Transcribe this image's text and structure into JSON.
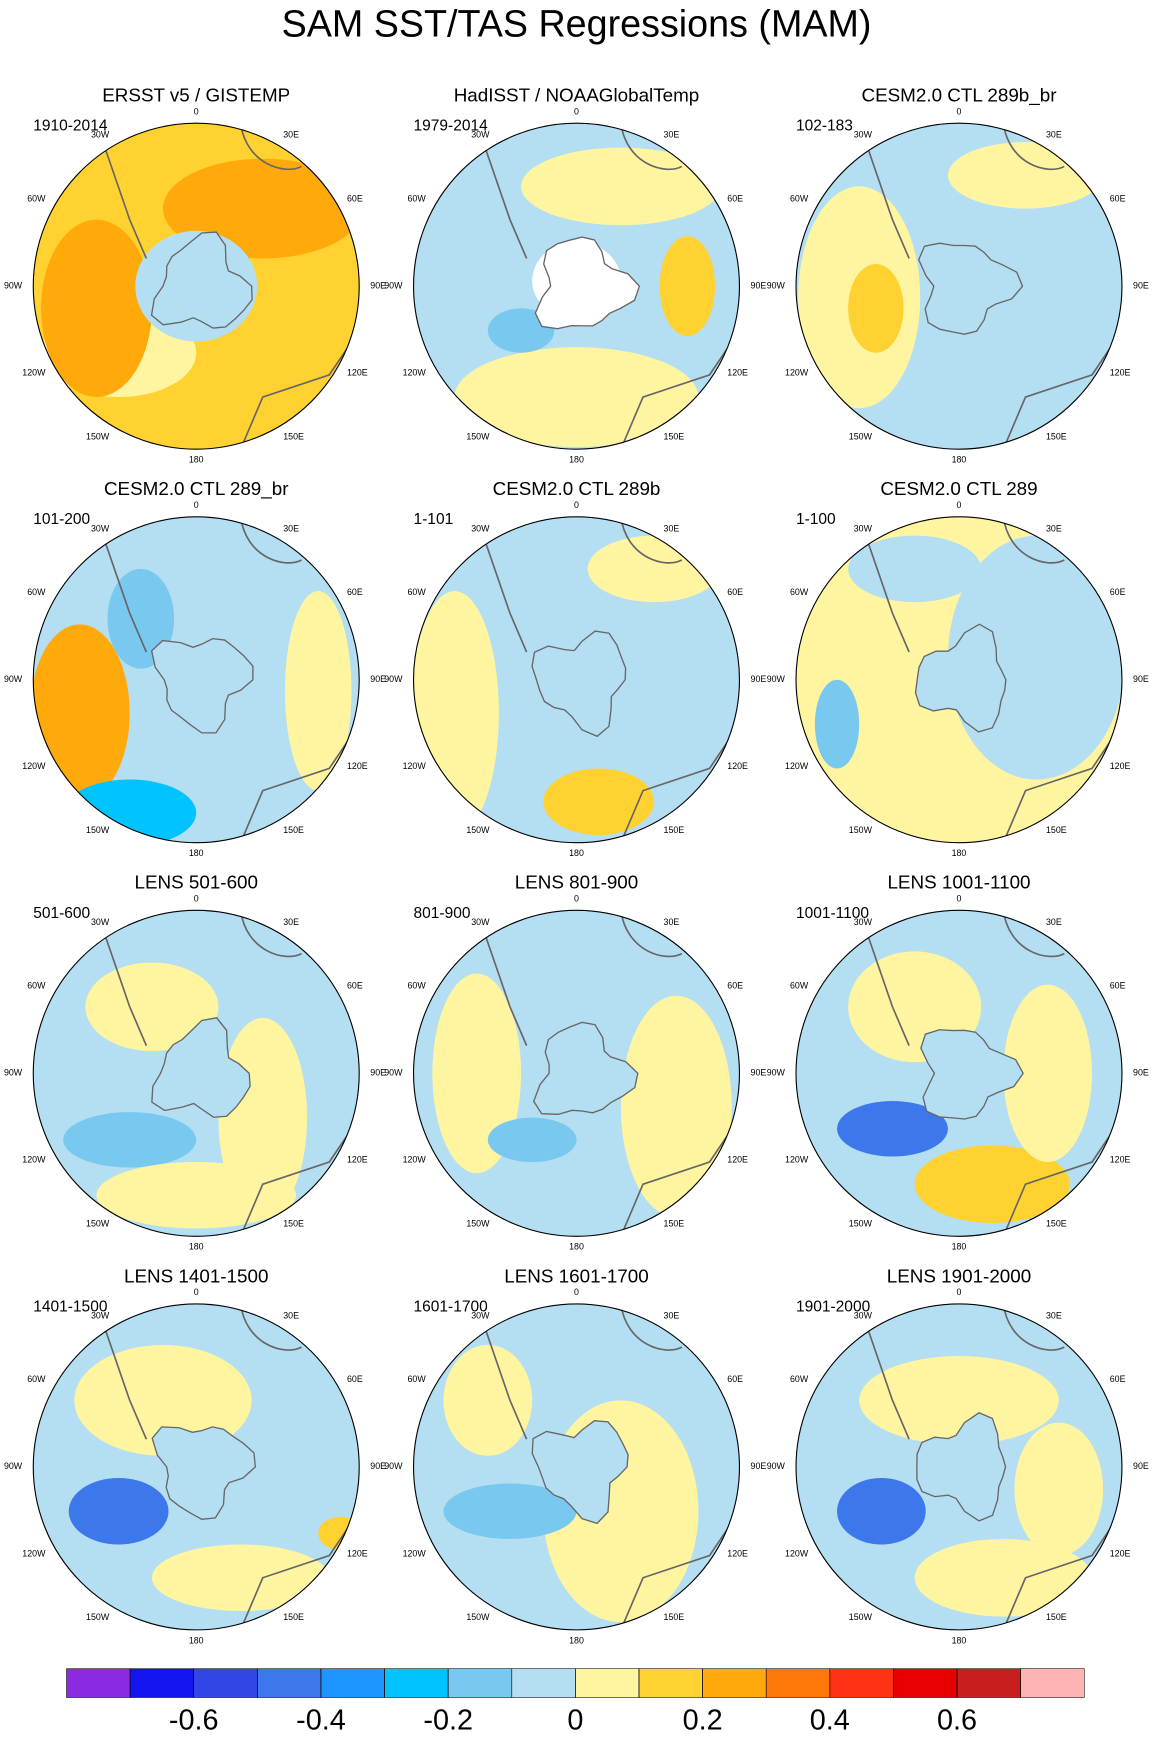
{
  "title": "SAM SST/TAS Regressions (MAM)",
  "longitude_labels": [
    "0",
    "30E",
    "60E",
    "90E",
    "120E",
    "150E",
    "180",
    "150W",
    "120W",
    "90W",
    "60W",
    "30W"
  ],
  "panels": [
    {
      "title": "ERSST v5 / GISTEMP",
      "period": "1910-2014"
    },
    {
      "title": "HadISST / NOAAGlobalTemp",
      "period": "1979-2014"
    },
    {
      "title": "CESM2.0 CTL 289b_br",
      "period": "102-183"
    },
    {
      "title": "CESM2.0 CTL 289_br",
      "period": "101-200"
    },
    {
      "title": "CESM2.0 CTL 289b",
      "period": "1-101"
    },
    {
      "title": "CESM2.0 CTL 289",
      "period": "1-100"
    },
    {
      "title": "LENS 501-600",
      "period": "501-600"
    },
    {
      "title": "LENS 801-900",
      "period": "801-900"
    },
    {
      "title": "LENS 1001-1100",
      "period": "1001-1100"
    },
    {
      "title": "LENS 1401-1500",
      "period": "1401-1500"
    },
    {
      "title": "LENS 1601-1700",
      "period": "1601-1700"
    },
    {
      "title": "LENS 1901-2000",
      "period": "1901-2000"
    }
  ],
  "colorbar": {
    "colors": [
      "#8a2be2",
      "#1414f0",
      "#3246e6",
      "#3c78eb",
      "#1e96ff",
      "#00c3ff",
      "#78c8f0",
      "#b4def2",
      "#fff5a0",
      "#ffd232",
      "#ffaa0a",
      "#ff780a",
      "#ff3214",
      "#e60000",
      "#c81e1e",
      "#ffb4b4"
    ],
    "levels": [
      -0.7,
      -0.6,
      -0.5,
      -0.4,
      -0.3,
      -0.2,
      -0.1,
      0,
      0.1,
      0.2,
      0.3,
      0.4,
      0.5,
      0.6,
      0.7
    ],
    "ticks": [
      -0.6,
      -0.4,
      -0.2,
      0,
      0.2,
      0.4,
      0.6
    ]
  }
}
